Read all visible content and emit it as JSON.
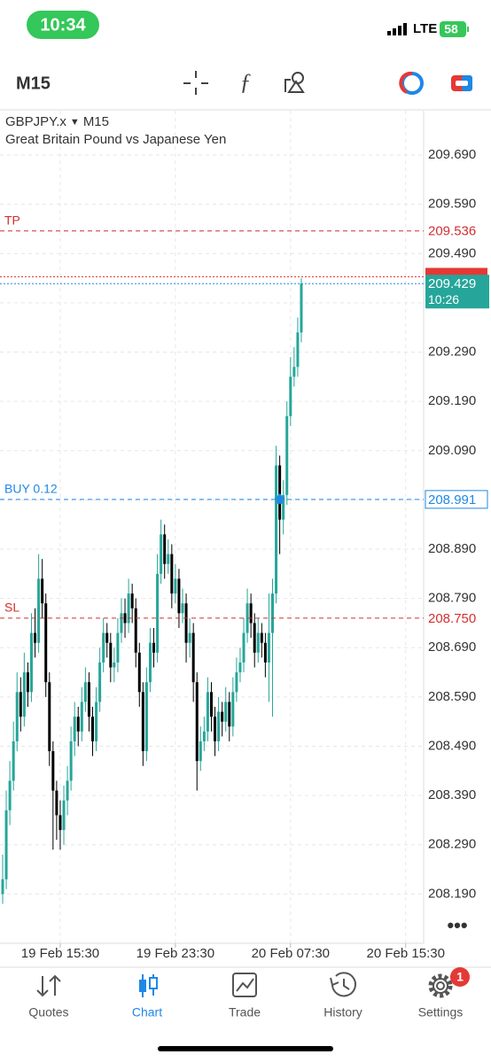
{
  "status_bar": {
    "time": "10:34",
    "network": "LTE",
    "battery": "58"
  },
  "toolbar": {
    "timeframe": "M15"
  },
  "chart_data": {
    "type": "candlestick",
    "symbol": "GBPJPY.x",
    "timeframe": "M15",
    "subtitle": "Great Britain Pound vs Japanese Yen",
    "up_color": "#26a69a",
    "down_color": "#000000",
    "grid": true,
    "ylim": [
      208.09,
      209.78
    ],
    "yticks": [
      {
        "value": 208.19,
        "label": "208.190"
      },
      {
        "value": 208.29,
        "label": "208.290"
      },
      {
        "value": 208.39,
        "label": "208.390"
      },
      {
        "value": 208.49,
        "label": "208.490"
      },
      {
        "value": 208.59,
        "label": "208.590"
      },
      {
        "value": 208.69,
        "label": "208.690"
      },
      {
        "value": 208.79,
        "label": "208.790"
      },
      {
        "value": 208.89,
        "label": "208.890"
      },
      {
        "value": 208.99,
        "label": "208.990"
      },
      {
        "value": 209.09,
        "label": "209.090"
      },
      {
        "value": 209.19,
        "label": "209.190"
      },
      {
        "value": 209.29,
        "label": "209.290"
      },
      {
        "value": 209.39,
        "label": "209.390"
      },
      {
        "value": 209.49,
        "label": "209.490"
      },
      {
        "value": 209.59,
        "label": "209.590"
      },
      {
        "value": 209.69,
        "label": "209.690"
      }
    ],
    "xticks": [
      {
        "value": 16,
        "label": "19 Feb 15:30"
      },
      {
        "value": 48,
        "label": "19 Feb 23:30"
      },
      {
        "value": 80,
        "label": "20 Feb 07:30"
      },
      {
        "value": 112,
        "label": "20 Feb 15:30"
      }
    ],
    "levels": [
      {
        "name": "TP",
        "value": 209.536,
        "value_label": "209.536",
        "color": "#d32f2f"
      },
      {
        "name": "BUY 0.12",
        "value": 208.991,
        "value_label": "208.991",
        "color": "#1e88e5"
      },
      {
        "name": "SL",
        "value": 208.75,
        "value_label": "208.750",
        "color": "#d32f2f"
      }
    ],
    "ask": {
      "value": 209.443,
      "color": "#e53935"
    },
    "bid": {
      "value": 209.429,
      "value_label": "209.429",
      "timer": "10:26",
      "color": "#26a69a"
    },
    "candles": [
      [
        208.19,
        208.27,
        208.17,
        208.22
      ],
      [
        208.22,
        208.4,
        208.2,
        208.36
      ],
      [
        208.36,
        208.46,
        208.33,
        208.42
      ],
      [
        208.42,
        208.54,
        208.4,
        208.5
      ],
      [
        208.5,
        208.64,
        208.48,
        208.6
      ],
      [
        208.6,
        208.63,
        208.52,
        208.55
      ],
      [
        208.55,
        208.68,
        208.53,
        208.64
      ],
      [
        208.64,
        208.66,
        208.57,
        208.6
      ],
      [
        208.6,
        208.76,
        208.58,
        208.72
      ],
      [
        208.72,
        208.77,
        208.67,
        208.7
      ],
      [
        208.7,
        208.88,
        208.68,
        208.83
      ],
      [
        208.83,
        208.87,
        208.75,
        208.78
      ],
      [
        208.78,
        208.8,
        208.59,
        208.62
      ],
      [
        208.62,
        208.64,
        208.45,
        208.48
      ],
      [
        208.48,
        208.5,
        208.28,
        208.4
      ],
      [
        208.4,
        208.42,
        208.3,
        208.35
      ],
      [
        208.35,
        208.38,
        208.28,
        208.32
      ],
      [
        208.32,
        208.41,
        208.29,
        208.38
      ],
      [
        208.38,
        208.45,
        208.35,
        208.42
      ],
      [
        208.42,
        208.53,
        208.4,
        208.5
      ],
      [
        208.5,
        208.58,
        208.47,
        208.55
      ],
      [
        208.55,
        208.57,
        208.49,
        208.52
      ],
      [
        208.52,
        208.61,
        208.5,
        208.58
      ],
      [
        208.58,
        208.65,
        208.56,
        208.62
      ],
      [
        208.62,
        208.64,
        208.52,
        208.55
      ],
      [
        208.55,
        208.57,
        208.47,
        208.5
      ],
      [
        208.5,
        208.61,
        208.48,
        208.58
      ],
      [
        208.58,
        208.69,
        208.56,
        208.66
      ],
      [
        208.66,
        208.75,
        208.64,
        208.72
      ],
      [
        208.72,
        208.74,
        208.67,
        208.7
      ],
      [
        208.7,
        208.72,
        208.62,
        208.65
      ],
      [
        208.65,
        208.69,
        208.62,
        208.66
      ],
      [
        208.66,
        208.75,
        208.64,
        208.72
      ],
      [
        208.72,
        208.79,
        208.7,
        208.76
      ],
      [
        208.76,
        208.79,
        208.71,
        208.74
      ],
      [
        208.74,
        208.83,
        208.72,
        208.8
      ],
      [
        208.8,
        208.82,
        208.74,
        208.77
      ],
      [
        208.77,
        208.79,
        208.65,
        208.68
      ],
      [
        208.68,
        208.7,
        208.57,
        208.6
      ],
      [
        208.6,
        208.62,
        208.45,
        208.48
      ],
      [
        208.48,
        208.65,
        208.46,
        208.62
      ],
      [
        208.62,
        208.73,
        208.6,
        208.7
      ],
      [
        208.7,
        208.73,
        208.65,
        208.68
      ],
      [
        208.68,
        208.88,
        208.66,
        208.84
      ],
      [
        208.84,
        208.95,
        208.82,
        208.92
      ],
      [
        208.92,
        208.94,
        208.83,
        208.86
      ],
      [
        208.86,
        208.91,
        208.84,
        208.88
      ],
      [
        208.88,
        208.9,
        208.77,
        208.8
      ],
      [
        208.8,
        208.86,
        208.78,
        208.83
      ],
      [
        208.83,
        208.85,
        208.73,
        208.76
      ],
      [
        208.76,
        208.81,
        208.74,
        208.78
      ],
      [
        208.78,
        208.8,
        208.66,
        208.7
      ],
      [
        208.7,
        208.75,
        208.67,
        208.72
      ],
      [
        208.72,
        208.74,
        208.58,
        208.62
      ],
      [
        208.62,
        208.64,
        208.4,
        208.46
      ],
      [
        208.46,
        208.53,
        208.44,
        208.5
      ],
      [
        208.5,
        208.55,
        208.48,
        208.52
      ],
      [
        208.52,
        208.63,
        208.5,
        208.6
      ],
      [
        208.6,
        208.62,
        208.52,
        208.55
      ],
      [
        208.55,
        208.57,
        208.47,
        208.5
      ],
      [
        208.5,
        208.59,
        208.48,
        208.56
      ],
      [
        208.56,
        208.58,
        208.51,
        208.54
      ],
      [
        208.54,
        208.61,
        208.52,
        208.58
      ],
      [
        208.58,
        208.6,
        208.5,
        208.53
      ],
      [
        208.53,
        208.63,
        208.51,
        208.6
      ],
      [
        208.6,
        208.67,
        208.58,
        208.64
      ],
      [
        208.64,
        208.69,
        208.62,
        208.66
      ],
      [
        208.66,
        208.75,
        208.64,
        208.72
      ],
      [
        208.72,
        208.81,
        208.7,
        208.78
      ],
      [
        208.78,
        208.8,
        208.71,
        208.74
      ],
      [
        208.74,
        208.76,
        208.65,
        208.68
      ],
      [
        208.68,
        208.75,
        208.66,
        208.72
      ],
      [
        208.72,
        208.74,
        208.67,
        208.7
      ],
      [
        208.7,
        208.72,
        208.63,
        208.66
      ],
      [
        208.66,
        208.8,
        208.58,
        208.72
      ],
      [
        208.72,
        208.83,
        208.55,
        208.8
      ],
      [
        208.8,
        209.1,
        208.78,
        209.06
      ],
      [
        209.06,
        209.08,
        208.88,
        208.95
      ],
      [
        208.95,
        209.03,
        208.92,
        209.0
      ],
      [
        209.0,
        209.19,
        208.98,
        209.16
      ],
      [
        209.16,
        209.28,
        209.14,
        209.24
      ],
      [
        209.24,
        209.3,
        209.22,
        209.26
      ],
      [
        209.26,
        209.36,
        209.24,
        209.33
      ],
      [
        209.33,
        209.44,
        209.31,
        209.429
      ]
    ]
  },
  "tabs": [
    "Quotes",
    "Chart",
    "Trade",
    "History",
    "Settings"
  ],
  "settings_badge": "1"
}
